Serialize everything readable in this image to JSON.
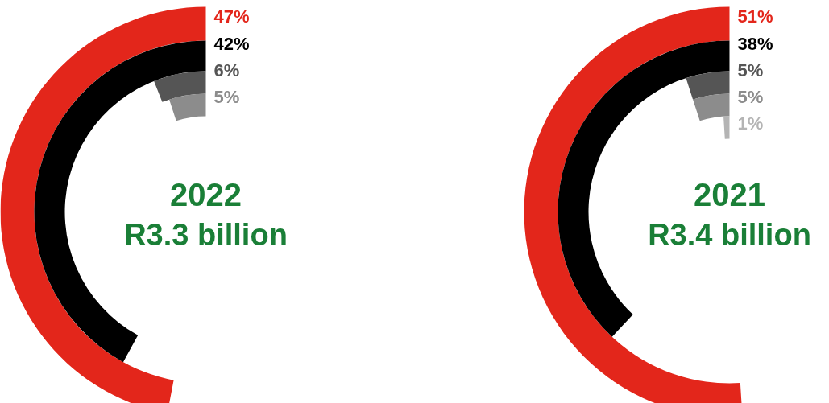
{
  "chart_data": [
    {
      "type": "other",
      "title": "2022",
      "subtitle": "R3.3 billion",
      "categories": [
        null,
        null,
        null,
        null
      ],
      "values": [
        47,
        42,
        6,
        5
      ],
      "value_labels": [
        "47%",
        "42%",
        "6%",
        "5%"
      ],
      "colors": [
        "#e3261b",
        "#000000",
        "#555555",
        "#8c8c8c"
      ]
    },
    {
      "type": "other",
      "title": "2021",
      "subtitle": "R3.4 billion",
      "categories": [
        null,
        null,
        null,
        null,
        null
      ],
      "values": [
        51,
        38,
        5,
        5,
        1
      ],
      "value_labels": [
        "51%",
        "38%",
        "5%",
        "5%",
        "1%"
      ],
      "colors": [
        "#e3261b",
        "#000000",
        "#555555",
        "#8c8c8c",
        "#b4b4b4"
      ]
    }
  ]
}
